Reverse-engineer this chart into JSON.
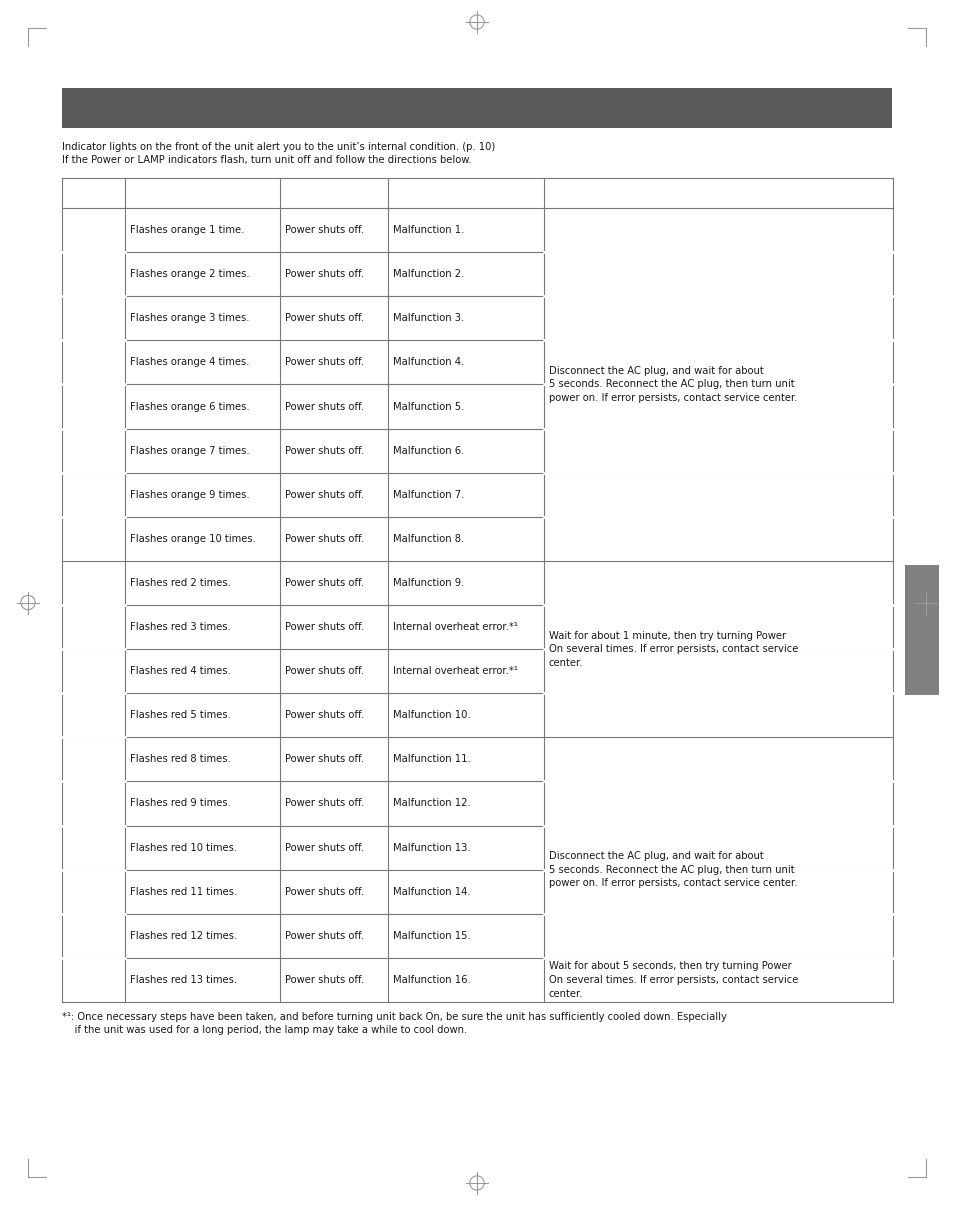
{
  "header_bar_color": "#5a5a5a",
  "intro_text_line1": "Indicator lights on the front of the unit alert you to the unit’s internal condition. (p. 10)",
  "intro_text_line2": "If the Power or LAMP indicators flash, turn unit off and follow the directions below.",
  "footnote_line1": "*¹: Once necessary steps have been taken, and before turning unit back On, be sure the unit has sufficiently cooled down. Especially",
  "footnote_line2": "    if the unit was used for a long period, the lamp may take a while to cool down.",
  "data_rows": [
    {
      "col2": "Flashes orange 1 time.",
      "col3": "Power shuts off.",
      "col4": "Malfunction 1.",
      "group": "orange"
    },
    {
      "col2": "Flashes orange 2 times.",
      "col3": "Power shuts off.",
      "col4": "Malfunction 2.",
      "group": "orange"
    },
    {
      "col2": "Flashes orange 3 times.",
      "col3": "Power shuts off.",
      "col4": "Malfunction 3.",
      "group": "orange"
    },
    {
      "col2": "Flashes orange 4 times.",
      "col3": "Power shuts off.",
      "col4": "Malfunction 4.",
      "group": "orange"
    },
    {
      "col2": "Flashes orange 6 times.",
      "col3": "Power shuts off.",
      "col4": "Malfunction 5.",
      "group": "orange"
    },
    {
      "col2": "Flashes orange 7 times.",
      "col3": "Power shuts off.",
      "col4": "Malfunction 6.",
      "group": "orange"
    },
    {
      "col2": "Flashes orange 9 times.",
      "col3": "Power shuts off.",
      "col4": "Malfunction 7.",
      "group": "orange"
    },
    {
      "col2": "Flashes orange 10 times.",
      "col3": "Power shuts off.",
      "col4": "Malfunction 8.",
      "group": "orange"
    },
    {
      "col2": "Flashes red 2 times.",
      "col3": "Power shuts off.",
      "col4": "Malfunction 9.",
      "group": "red"
    },
    {
      "col2": "Flashes red 3 times.",
      "col3": "Power shuts off.",
      "col4": "Internal overheat error.*¹",
      "group": "red"
    },
    {
      "col2": "Flashes red 4 times.",
      "col3": "Power shuts off.",
      "col4": "Internal overheat error.*¹",
      "group": "red"
    },
    {
      "col2": "Flashes red 5 times.",
      "col3": "Power shuts off.",
      "col4": "Malfunction 10.",
      "group": "red"
    },
    {
      "col2": "Flashes red 8 times.",
      "col3": "Power shuts off.",
      "col4": "Malfunction 11.",
      "group": "red"
    },
    {
      "col2": "Flashes red 9 times.",
      "col3": "Power shuts off.",
      "col4": "Malfunction 12.",
      "group": "red"
    },
    {
      "col2": "Flashes red 10 times.",
      "col3": "Power shuts off.",
      "col4": "Malfunction 13.",
      "group": "red"
    },
    {
      "col2": "Flashes red 11 times.",
      "col3": "Power shuts off.",
      "col4": "Malfunction 14.",
      "group": "red"
    },
    {
      "col2": "Flashes red 12 times.",
      "col3": "Power shuts off.",
      "col4": "Malfunction 15.",
      "group": "red"
    },
    {
      "col2": "Flashes red 13 times.",
      "col3": "Power shuts off.",
      "col4": "Malfunction 16.",
      "group": "red"
    }
  ],
  "col5_orange": "Disconnect the AC plug, and wait for about\n5 seconds. Reconnect the AC plug, then turn unit\npower on. If error persists, contact service center.",
  "col5_red1": "Wait for about 1 minute, then try turning Power\nOn several times. If error persists, contact service\ncenter.",
  "col5_red2": "Disconnect the AC plug, and wait for about\n5 seconds. Reconnect the AC plug, then turn unit\npower on. If error persists, contact service center.",
  "col5_red3": "Wait for about 5 seconds, then try turning Power\nOn several times. If error persists, contact service\ncenter.",
  "page_bg": "#ffffff",
  "text_color": "#1a1a1a",
  "grid_color": "#777777",
  "font_size": 7.2,
  "mark_color": "#999999"
}
